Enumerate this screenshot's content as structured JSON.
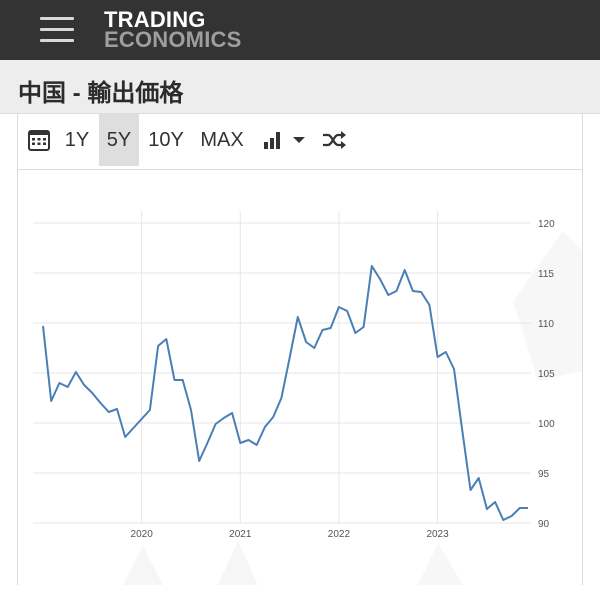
{
  "header": {
    "logo_line1": "TRADING",
    "logo_line2": "ECONOMICS"
  },
  "page": {
    "title": "中国 - 輸出価格"
  },
  "toolbar": {
    "ranges": [
      "1Y",
      "5Y",
      "10Y",
      "MAX"
    ],
    "active_range": "5Y",
    "icons": [
      "calendar-icon",
      "bar-chart-icon",
      "caret-down-icon",
      "shuffle-icon"
    ]
  },
  "colors": {
    "line": "#4a7fb5",
    "topbar": "#333333",
    "active_tab": "#dedede"
  },
  "chart_data": {
    "type": "line",
    "title": "",
    "xlabel": "",
    "ylabel": "",
    "ylim": [
      90,
      120
    ],
    "yticks": [
      "90",
      "95",
      "100",
      "105",
      "110",
      "115",
      "120"
    ],
    "xtick_labels": [
      "2020",
      "2021",
      "2022",
      "2023"
    ],
    "xlim": [
      "2019-01",
      "2023-12"
    ],
    "grid": true,
    "series": [
      {
        "name": "",
        "x": [
          "2019-01",
          "2019-02",
          "2019-03",
          "2019-04",
          "2019-05",
          "2019-06",
          "2019-07",
          "2019-08",
          "2019-09",
          "2019-10",
          "2019-11",
          "2019-12",
          "2020-01",
          "2020-02",
          "2020-03",
          "2020-04",
          "2020-05",
          "2020-06",
          "2020-07",
          "2020-08",
          "2020-09",
          "2020-10",
          "2020-11",
          "2020-12",
          "2021-01",
          "2021-02",
          "2021-03",
          "2021-04",
          "2021-05",
          "2021-06",
          "2021-07",
          "2021-08",
          "2021-09",
          "2021-10",
          "2021-11",
          "2021-12",
          "2022-01",
          "2022-02",
          "2022-03",
          "2022-04",
          "2022-05",
          "2022-06",
          "2022-07",
          "2022-08",
          "2022-09",
          "2022-10",
          "2022-11",
          "2022-12",
          "2023-01",
          "2023-02",
          "2023-03",
          "2023-04",
          "2023-05",
          "2023-06",
          "2023-07",
          "2023-08",
          "2023-09",
          "2023-10",
          "2023-11",
          "2023-12"
        ],
        "values": [
          109.7,
          102.2,
          104.0,
          103.6,
          105.1,
          103.8,
          103.0,
          102.0,
          101.1,
          101.4,
          98.6,
          99.5,
          100.4,
          101.3,
          107.7,
          108.4,
          104.3,
          104.3,
          101.3,
          96.2,
          98.0,
          99.9,
          100.5,
          101.0,
          98.0,
          98.3,
          97.8,
          99.6,
          100.6,
          102.5,
          106.5,
          110.6,
          108.1,
          107.5,
          109.3,
          109.5,
          111.6,
          111.2,
          109.0,
          109.6,
          115.7,
          114.4,
          112.8,
          113.2,
          115.3,
          113.2,
          113.1,
          111.8,
          106.6,
          107.1,
          105.4,
          99.3,
          93.3,
          94.5,
          91.4,
          92.1,
          90.3,
          90.7,
          91.5,
          91.5
        ]
      }
    ]
  }
}
